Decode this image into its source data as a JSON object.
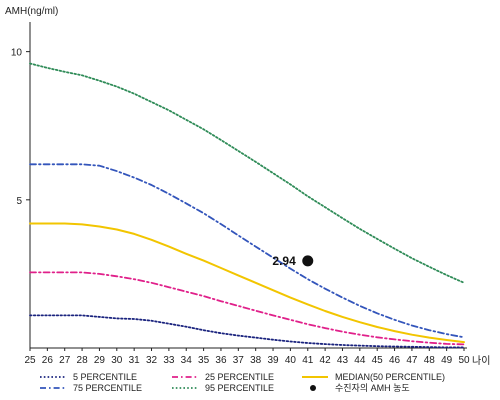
{
  "chart_data": {
    "type": "line",
    "ylabel": "AMH(ng/ml)",
    "xlabel": "나이",
    "x": [
      25,
      26,
      27,
      28,
      29,
      30,
      31,
      32,
      33,
      34,
      35,
      36,
      37,
      38,
      39,
      40,
      41,
      42,
      43,
      44,
      45,
      46,
      47,
      48,
      49,
      50
    ],
    "xlim": [
      25,
      50
    ],
    "ylim": [
      0,
      11
    ],
    "yticks": [
      5,
      10
    ],
    "grid": false,
    "legend_position": "bottom",
    "series": [
      {
        "name": "5 PERCENTILE",
        "color": "#1a237e",
        "dash": "dotted",
        "values": [
          1.1,
          1.1,
          1.1,
          1.1,
          1.05,
          1.0,
          0.98,
          0.92,
          0.82,
          0.72,
          0.6,
          0.5,
          0.42,
          0.35,
          0.28,
          0.22,
          0.17,
          0.13,
          0.1,
          0.08,
          0.06,
          0.05,
          0.04,
          0.03,
          0.02,
          0.02
        ]
      },
      {
        "name": "25 PERCENTILE",
        "color": "#e0208a",
        "dash": "dashdot",
        "values": [
          2.55,
          2.55,
          2.55,
          2.55,
          2.5,
          2.42,
          2.32,
          2.2,
          2.05,
          1.9,
          1.75,
          1.58,
          1.42,
          1.26,
          1.1,
          0.95,
          0.8,
          0.67,
          0.55,
          0.45,
          0.36,
          0.29,
          0.23,
          0.18,
          0.14,
          0.12
        ]
      },
      {
        "name": "MEDIAN(50 PERCENTILE)",
        "color": "#f2c500",
        "dash": "solid",
        "values": [
          4.2,
          4.2,
          4.2,
          4.17,
          4.1,
          4.0,
          3.85,
          3.65,
          3.42,
          3.18,
          2.95,
          2.7,
          2.45,
          2.2,
          1.95,
          1.7,
          1.47,
          1.25,
          1.05,
          0.87,
          0.71,
          0.57,
          0.45,
          0.35,
          0.27,
          0.2
        ]
      },
      {
        "name": "75 PERCENTILE",
        "color": "#3355bb",
        "dash": "dashdot",
        "values": [
          6.2,
          6.2,
          6.2,
          6.2,
          6.15,
          5.97,
          5.75,
          5.5,
          5.2,
          4.88,
          4.55,
          4.18,
          3.8,
          3.42,
          3.05,
          2.68,
          2.32,
          2.0,
          1.7,
          1.42,
          1.17,
          0.95,
          0.76,
          0.6,
          0.47,
          0.36
        ]
      },
      {
        "name": "95 PERCENTILE",
        "color": "#2e8b57",
        "dash": "dotted",
        "values": [
          9.6,
          9.45,
          9.32,
          9.2,
          9.02,
          8.82,
          8.58,
          8.3,
          8.02,
          7.7,
          7.38,
          7.02,
          6.65,
          6.28,
          5.9,
          5.52,
          5.12,
          4.75,
          4.38,
          4.02,
          3.68,
          3.35,
          3.03,
          2.74,
          2.46,
          2.2
        ]
      }
    ],
    "marker": {
      "name": "수진자의 AMH 농도",
      "x": 41,
      "y": 2.94,
      "label": "2.94",
      "color": "#111111"
    }
  }
}
